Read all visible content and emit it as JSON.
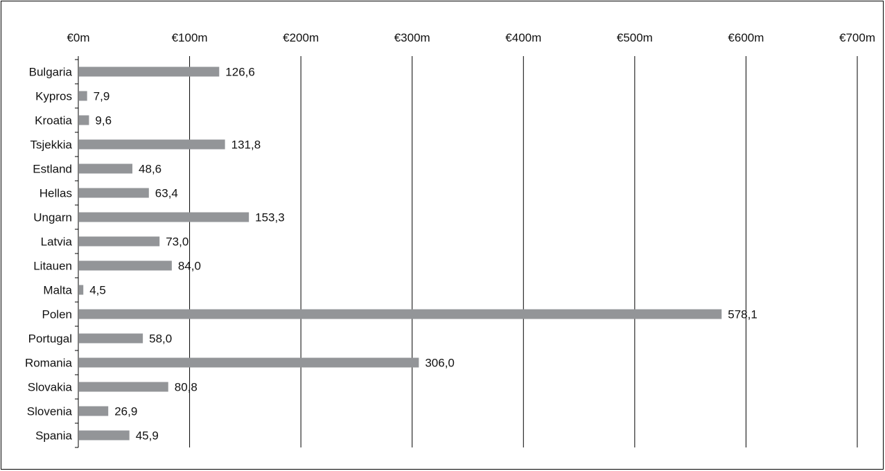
{
  "chart_data": {
    "type": "bar",
    "orientation": "horizontal",
    "title": "",
    "xlabel": "",
    "ylabel": "",
    "xlim": [
      0,
      700
    ],
    "x_ticks": [
      "€0m",
      "€100m",
      "€200m",
      "€300m",
      "€400m",
      "€500m",
      "€600m",
      "€700m"
    ],
    "x_tick_values": [
      0,
      100,
      200,
      300,
      400,
      500,
      600,
      700
    ],
    "x_axis_position": "top",
    "grid": true,
    "legend": "none",
    "bar_color": "#939598",
    "categories": [
      "Bulgaria",
      "Kypros",
      "Kroatia",
      "Tsjekkia",
      "Estland",
      "Hellas",
      "Ungarn",
      "Latvia",
      "Litauen",
      "Malta",
      "Polen",
      "Portugal",
      "Romania",
      "Slovakia",
      "Slovenia",
      "Spania"
    ],
    "values": [
      126.6,
      7.9,
      9.6,
      131.8,
      48.6,
      63.4,
      153.3,
      73.0,
      84.0,
      4.5,
      578.1,
      58.0,
      306.0,
      80.8,
      26.9,
      45.9
    ],
    "value_labels": [
      "126,6",
      "7,9",
      "9,6",
      "131,8",
      "48,6",
      "63,4",
      "153,3",
      "73,0",
      "84,0",
      "4,5",
      "578,1",
      "58,0",
      "306,0",
      "80,8",
      "26,9",
      "45,9"
    ]
  }
}
